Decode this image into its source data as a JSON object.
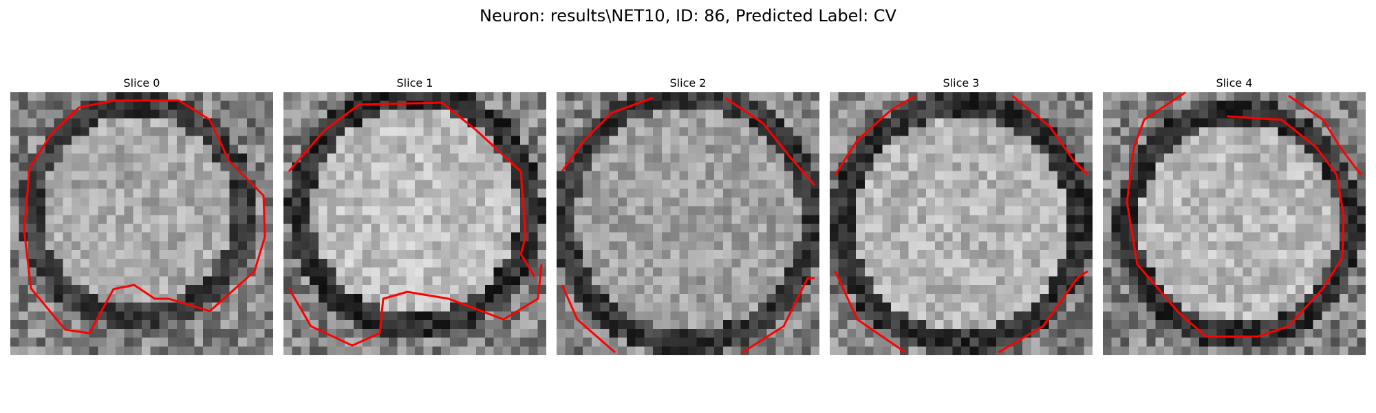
{
  "figure": {
    "title": "Neuron: results\\NET10, ID: 86, Predicted Label: CV"
  },
  "colors": {
    "contour": "#ff0000",
    "background": "#ffffff"
  },
  "panels": [
    {
      "title": "Slice 0"
    },
    {
      "title": "Slice 1"
    },
    {
      "title": "Slice 2"
    },
    {
      "title": "Slice 3"
    },
    {
      "title": "Slice 4"
    }
  ]
}
